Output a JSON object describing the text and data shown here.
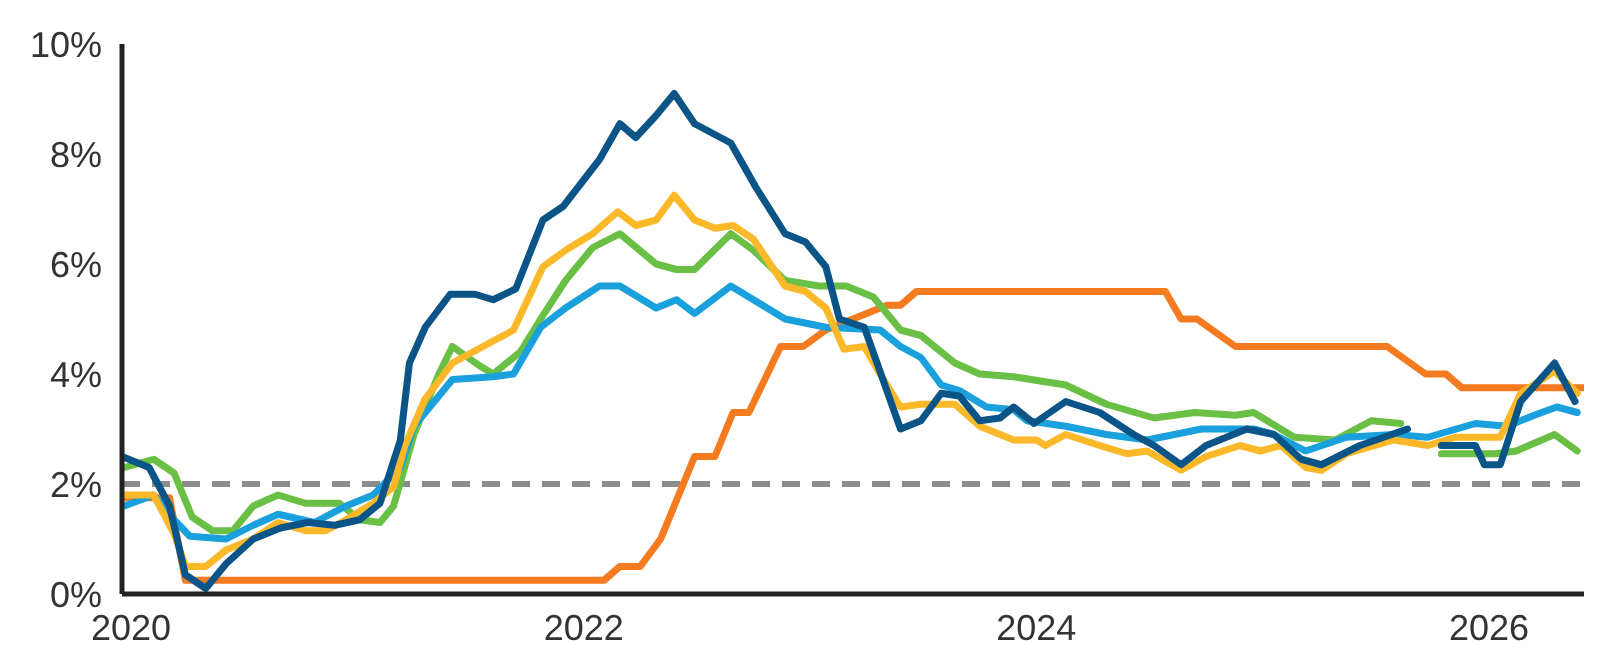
{
  "chart_data": {
    "type": "line",
    "marker": "none",
    "line_style": "solid",
    "xlim": [
      2019.96,
      2026.42
    ],
    "xticks": [
      2020,
      2022,
      2024,
      2026
    ],
    "ylim": [
      0,
      10
    ],
    "yticks": [
      {
        "value": 0,
        "label": "0%"
      },
      {
        "value": 2,
        "label": "2%"
      },
      {
        "value": 4,
        "label": "4%"
      },
      {
        "value": 6,
        "label": "6%"
      },
      {
        "value": 8,
        "label": "8%"
      },
      {
        "value": 10,
        "label": "10%"
      }
    ],
    "ref_lines": [
      {
        "axis": "y",
        "value": 2,
        "label": null,
        "color": "#8c8c8c",
        "line_style": "dashed"
      }
    ],
    "series": [
      {
        "color": "#f47b20",
        "x": [
          2019.96,
          2020.17,
          2020.24,
          2022.09,
          2022.16,
          2022.25,
          2022.34,
          2022.49,
          2022.58,
          2022.66,
          2022.73,
          2022.87,
          2022.97,
          2023.07,
          2023.34,
          2023.4,
          2023.47,
          2024.57,
          2024.64,
          2024.71,
          2024.88,
          2025.55,
          2025.72,
          2025.81,
          2025.88,
          2026.42
        ],
        "values": [
          1.75,
          1.75,
          0.25,
          0.25,
          0.5,
          0.5,
          1.0,
          2.5,
          2.5,
          3.3,
          3.3,
          4.5,
          4.5,
          4.8,
          5.25,
          5.25,
          5.5,
          5.5,
          5.0,
          5.0,
          4.5,
          4.5,
          4.0,
          4.0,
          3.75,
          3.75
        ]
      },
      {
        "color": "#6abf45",
        "x": [
          2019.97,
          2020.1,
          2020.19,
          2020.27,
          2020.36,
          2020.45,
          2020.54,
          2020.65,
          2020.77,
          2020.92,
          2021.01,
          2021.1,
          2021.16,
          2021.25,
          2021.36,
          2021.42,
          2021.54,
          2021.6,
          2021.72,
          2021.81,
          2021.92,
          2022.04,
          2022.16,
          2022.32,
          2022.41,
          2022.49,
          2022.65,
          2022.75,
          2022.89,
          2023.04,
          2023.16,
          2023.28,
          2023.4,
          2023.49,
          2023.64,
          2023.75,
          2023.9,
          2024.13,
          2024.31,
          2024.52,
          2024.7,
          2024.88,
          2024.96,
          2025.14,
          2025.32,
          2025.48,
          2025.61,
          2025.7,
          2025.79,
          2026.03,
          2026.12,
          2026.29,
          2026.39
        ],
        "values": [
          2.3,
          2.45,
          2.2,
          1.4,
          1.15,
          1.15,
          1.6,
          1.8,
          1.65,
          1.65,
          1.35,
          1.3,
          1.6,
          2.9,
          4.0,
          4.5,
          4.15,
          4.0,
          4.4,
          5.0,
          5.7,
          6.3,
          6.55,
          6.0,
          5.9,
          5.9,
          6.55,
          6.25,
          5.7,
          5.6,
          5.6,
          5.4,
          4.8,
          4.7,
          4.2,
          4.0,
          3.95,
          3.8,
          3.45,
          3.2,
          3.3,
          3.25,
          3.3,
          2.85,
          2.8,
          3.15,
          3.1,
          null,
          2.55,
          2.55,
          2.6,
          2.9,
          2.6
        ]
      },
      {
        "color": "#1aa0dc",
        "x": [
          2019.97,
          2020.1,
          2020.19,
          2020.26,
          2020.42,
          2020.54,
          2020.65,
          2020.81,
          2020.95,
          2021.07,
          2021.19,
          2021.25,
          2021.42,
          2021.6,
          2021.69,
          2021.81,
          2021.92,
          2022.07,
          2022.16,
          2022.32,
          2022.41,
          2022.49,
          2022.65,
          2022.89,
          2023.07,
          2023.31,
          2023.4,
          2023.49,
          2023.58,
          2023.66,
          2023.78,
          2023.9,
          2023.96,
          2024.13,
          2024.31,
          2024.49,
          2024.73,
          2024.96,
          2025.05,
          2025.19,
          2025.37,
          2025.58,
          2025.73,
          2025.94,
          2026.08,
          2026.2,
          2026.3,
          2026.39
        ],
        "values": [
          1.6,
          1.8,
          1.35,
          1.05,
          1.0,
          1.25,
          1.45,
          1.3,
          1.6,
          1.8,
          2.3,
          3.05,
          3.9,
          3.95,
          4.0,
          4.85,
          5.2,
          5.6,
          5.6,
          5.2,
          5.35,
          5.1,
          5.6,
          5.0,
          4.85,
          4.8,
          4.5,
          4.3,
          3.8,
          3.7,
          3.4,
          3.35,
          3.15,
          3.05,
          2.9,
          2.8,
          3.0,
          3.0,
          2.9,
          2.6,
          2.85,
          2.9,
          2.85,
          3.1,
          3.05,
          3.25,
          3.4,
          3.3
        ]
      },
      {
        "color": "#fbb829",
        "x": [
          2019.97,
          2020.1,
          2020.19,
          2020.24,
          2020.33,
          2020.42,
          2020.54,
          2020.65,
          2020.77,
          2020.86,
          2020.95,
          2021.07,
          2021.16,
          2021.21,
          2021.3,
          2021.42,
          2021.6,
          2021.69,
          2021.82,
          2021.92,
          2022.04,
          2022.15,
          2022.23,
          2022.32,
          2022.4,
          2022.49,
          2022.58,
          2022.66,
          2022.75,
          2022.89,
          2022.98,
          2023.07,
          2023.15,
          2023.24,
          2023.31,
          2023.4,
          2023.49,
          2023.64,
          2023.75,
          2023.9,
          2024.0,
          2024.04,
          2024.13,
          2024.28,
          2024.4,
          2024.49,
          2024.64,
          2024.75,
          2024.9,
          2024.99,
          2025.08,
          2025.19,
          2025.26,
          2025.37,
          2025.58,
          2025.73,
          2025.85,
          2026.05,
          2026.14,
          2026.29,
          2026.39
        ],
        "values": [
          1.8,
          1.8,
          1.1,
          0.5,
          0.5,
          0.8,
          1.0,
          1.3,
          1.15,
          1.15,
          1.35,
          1.65,
          1.95,
          2.7,
          3.55,
          4.2,
          4.6,
          4.8,
          5.95,
          6.25,
          6.55,
          6.95,
          6.7,
          6.8,
          7.25,
          6.8,
          6.65,
          6.7,
          6.45,
          5.6,
          5.5,
          5.2,
          4.45,
          4.5,
          4.0,
          3.4,
          3.45,
          3.45,
          3.05,
          2.8,
          2.8,
          2.7,
          2.9,
          2.7,
          2.55,
          2.6,
          2.25,
          2.5,
          2.7,
          2.6,
          2.7,
          2.3,
          2.25,
          2.55,
          2.8,
          2.7,
          2.85,
          2.85,
          3.65,
          4.05,
          3.65
        ]
      },
      {
        "color": "#0b5487",
        "x": [
          2019.96,
          2020.08,
          2020.17,
          2020.24,
          2020.33,
          2020.42,
          2020.54,
          2020.66,
          2020.78,
          2020.9,
          2021.01,
          2021.1,
          2021.19,
          2021.23,
          2021.3,
          2021.41,
          2021.52,
          2021.6,
          2021.7,
          2021.82,
          2021.91,
          2022.07,
          2022.16,
          2022.23,
          2022.32,
          2022.4,
          2022.49,
          2022.65,
          2022.76,
          2022.89,
          2022.98,
          2023.07,
          2023.13,
          2023.24,
          2023.4,
          2023.49,
          2023.58,
          2023.66,
          2023.75,
          2023.84,
          2023.9,
          2023.99,
          2024.13,
          2024.28,
          2024.43,
          2024.52,
          2024.64,
          2024.75,
          2024.93,
          2025.05,
          2025.17,
          2025.26,
          2025.43,
          2025.64,
          2025.7,
          2025.79,
          2025.94,
          2025.98,
          2026.05,
          2026.14,
          2026.29,
          2026.38
        ],
        "values": [
          2.5,
          2.3,
          1.6,
          0.35,
          0.1,
          0.55,
          1.0,
          1.2,
          1.3,
          1.25,
          1.35,
          1.65,
          2.8,
          4.2,
          4.85,
          5.45,
          5.45,
          5.35,
          5.55,
          6.8,
          7.05,
          7.9,
          8.55,
          8.3,
          8.7,
          9.1,
          8.55,
          8.2,
          7.4,
          6.55,
          6.4,
          5.95,
          5.0,
          4.85,
          3.0,
          3.15,
          3.65,
          3.6,
          3.15,
          3.2,
          3.4,
          3.1,
          3.5,
          3.3,
          2.9,
          2.7,
          2.35,
          2.7,
          3.0,
          2.9,
          2.45,
          2.35,
          2.7,
          3.0,
          null,
          2.7,
          2.7,
          2.35,
          2.35,
          3.5,
          4.2,
          3.5
        ]
      }
    ]
  }
}
